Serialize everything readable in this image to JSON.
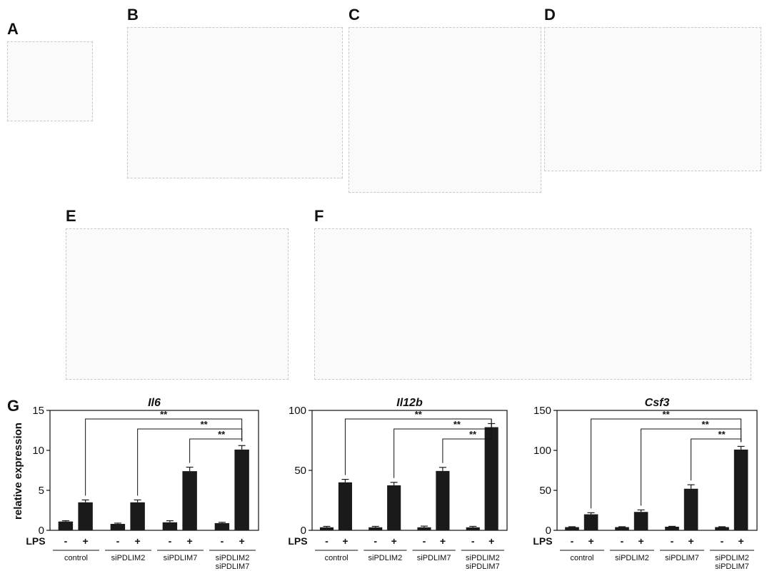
{
  "panels": {
    "A": "A",
    "B": "B",
    "C": "C",
    "D": "D",
    "E": "E",
    "F": "F",
    "G": "G"
  },
  "panelG": {
    "ylabel": "relative expression",
    "lps_label": "LPS",
    "minus": "-",
    "plus": "+",
    "significance": "**",
    "groups": [
      "control",
      "siPDLIM2",
      "siPDLIM7",
      "siPDLIM2\nsiPDLIM7"
    ],
    "group_lines": [
      [
        "control"
      ],
      [
        "siPDLIM2"
      ],
      [
        "siPDLIM7"
      ],
      [
        "siPDLIM2",
        "siPDLIM7"
      ]
    ]
  },
  "chart_data": [
    {
      "type": "bar",
      "title": "Il6",
      "ylabel": "relative expression",
      "ylim": [
        0,
        15
      ],
      "yticks": [
        0,
        5,
        10,
        15
      ],
      "categories": [
        "control -",
        "control +",
        "siPDLIM2 -",
        "siPDLIM2 +",
        "siPDLIM7 -",
        "siPDLIM7 +",
        "siPDLIM2 siPDLIM7 -",
        "siPDLIM2 siPDLIM7 +"
      ],
      "values": [
        1.1,
        3.5,
        0.8,
        3.5,
        1.0,
        7.4,
        0.9,
        10.1
      ],
      "errors": [
        0.1,
        0.3,
        0.1,
        0.3,
        0.2,
        0.5,
        0.1,
        0.5
      ],
      "annotations": [
        "**",
        "**",
        "**"
      ]
    },
    {
      "type": "bar",
      "title": "Il12b",
      "ylabel": "",
      "ylim": [
        0,
        100
      ],
      "yticks": [
        0,
        50,
        100
      ],
      "categories": [
        "control -",
        "control +",
        "siPDLIM2 -",
        "siPDLIM2 +",
        "siPDLIM7 -",
        "siPDLIM7 +",
        "siPDLIM2 siPDLIM7 -",
        "siPDLIM2 siPDLIM7 +"
      ],
      "values": [
        2.5,
        40,
        2.5,
        37.5,
        2.5,
        49.5,
        2.5,
        86
      ],
      "errors": [
        0.8,
        2.5,
        0.8,
        2.5,
        1.0,
        3.0,
        0.8,
        3.0
      ],
      "annotations": [
        "**",
        "**",
        "**"
      ]
    },
    {
      "type": "bar",
      "title": "Csf3",
      "ylabel": "",
      "ylim": [
        0,
        150
      ],
      "yticks": [
        0,
        50,
        100,
        150
      ],
      "categories": [
        "control -",
        "control +",
        "siPDLIM2 -",
        "siPDLIM2 +",
        "siPDLIM7 -",
        "siPDLIM7 +",
        "siPDLIM2 siPDLIM7 -",
        "siPDLIM2 siPDLIM7 +"
      ],
      "values": [
        4,
        20,
        4,
        23,
        4.5,
        52,
        4,
        101
      ],
      "errors": [
        0.5,
        2,
        0.5,
        2.5,
        0.5,
        5,
        0.5,
        4
      ],
      "annotations": [
        "**",
        "**",
        "**"
      ]
    }
  ]
}
